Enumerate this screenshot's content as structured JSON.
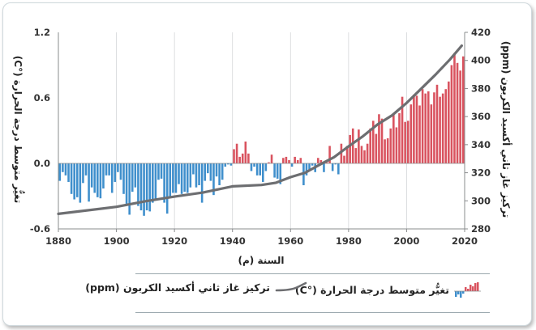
{
  "chart_data": {
    "type": "bar+line",
    "x_start": 1880,
    "x_end": 2019,
    "xlim": [
      1880,
      2020
    ],
    "xticks": [
      1880,
      1900,
      1920,
      1940,
      1960,
      1980,
      2000,
      2020
    ],
    "xlabel": "السنة (م)",
    "y_left": {
      "label": "تغيُّر متوسط درجة الحرارة (°C)",
      "lim": [
        -0.6,
        1.2
      ],
      "ticks": [
        "1.2",
        "0.6",
        "0.0",
        "-0.6"
      ],
      "tick_values": [
        1.2,
        0.6,
        0.0,
        -0.6
      ]
    },
    "y_right": {
      "label": "تركيز غاز ثاني أكسيد الكربون (ppm)",
      "lim": [
        280,
        420
      ],
      "ticks": [
        "420",
        "400",
        "380",
        "360",
        "340",
        "320",
        "300",
        "280"
      ],
      "tick_values": [
        420,
        400,
        380,
        360,
        340,
        320,
        300,
        280
      ]
    },
    "temperature_anomaly": [
      -0.16,
      -0.08,
      -0.11,
      -0.17,
      -0.28,
      -0.33,
      -0.31,
      -0.36,
      -0.18,
      -0.11,
      -0.35,
      -0.22,
      -0.27,
      -0.31,
      -0.32,
      -0.23,
      -0.11,
      -0.11,
      -0.27,
      -0.17,
      -0.08,
      -0.15,
      -0.28,
      -0.37,
      -0.47,
      -0.26,
      -0.22,
      -0.39,
      -0.43,
      -0.48,
      -0.43,
      -0.44,
      -0.36,
      -0.34,
      -0.15,
      -0.14,
      -0.36,
      -0.46,
      -0.3,
      -0.27,
      -0.27,
      -0.19,
      -0.28,
      -0.26,
      -0.27,
      -0.22,
      -0.1,
      -0.22,
      -0.2,
      -0.36,
      -0.16,
      -0.09,
      -0.16,
      -0.29,
      -0.12,
      -0.2,
      -0.15,
      -0.03,
      -0.01,
      -0.02,
      0.13,
      0.18,
      0.06,
      0.09,
      0.2,
      0.09,
      -0.07,
      -0.03,
      -0.11,
      -0.11,
      -0.17,
      -0.07,
      0.01,
      0.08,
      -0.13,
      -0.14,
      -0.19,
      0.05,
      0.06,
      0.03,
      -0.03,
      0.06,
      0.03,
      0.05,
      -0.2,
      -0.11,
      -0.06,
      -0.02,
      -0.08,
      0.05,
      0.03,
      -0.08,
      0.01,
      0.16,
      -0.07,
      -0.01,
      -0.1,
      0.18,
      0.07,
      0.16,
      0.26,
      0.32,
      0.14,
      0.31,
      0.16,
      0.12,
      0.18,
      0.32,
      0.39,
      0.27,
      0.45,
      0.41,
      0.22,
      0.23,
      0.32,
      0.45,
      0.33,
      0.46,
      0.61,
      0.38,
      0.39,
      0.54,
      0.63,
      0.62,
      0.53,
      0.68,
      0.64,
      0.66,
      0.54,
      0.65,
      0.72,
      0.61,
      0.64,
      0.68,
      0.75,
      0.9,
      1.01,
      0.92,
      0.85,
      0.98
    ],
    "co2_ppm_points": [
      {
        "year": 1880,
        "ppm": 290.7
      },
      {
        "year": 1900,
        "ppm": 295.7
      },
      {
        "year": 1910,
        "ppm": 299.7
      },
      {
        "year": 1920,
        "ppm": 303.0
      },
      {
        "year": 1930,
        "ppm": 306.0
      },
      {
        "year": 1940,
        "ppm": 310.3
      },
      {
        "year": 1950,
        "ppm": 311.3
      },
      {
        "year": 1955,
        "ppm": 312.9
      },
      {
        "year": 1960,
        "ppm": 316.9
      },
      {
        "year": 1965,
        "ppm": 320.0
      },
      {
        "year": 1970,
        "ppm": 325.7
      },
      {
        "year": 1975,
        "ppm": 331.1
      },
      {
        "year": 1980,
        "ppm": 338.8
      },
      {
        "year": 1985,
        "ppm": 346.1
      },
      {
        "year": 1990,
        "ppm": 354.4
      },
      {
        "year": 1995,
        "ppm": 360.9
      },
      {
        "year": 2000,
        "ppm": 369.7
      },
      {
        "year": 2005,
        "ppm": 379.8
      },
      {
        "year": 2010,
        "ppm": 389.9
      },
      {
        "year": 2015,
        "ppm": 400.8
      },
      {
        "year": 2019,
        "ppm": 410.5
      }
    ],
    "grid": "vertical",
    "colors": {
      "positive_bar": "#d9535f",
      "negative_bar": "#3f8fcc",
      "co2_line": "#6d6e71",
      "axis": "#8a8c8e",
      "grid": "#d4d6d8"
    }
  },
  "legend": {
    "temperature_label": "تغيُّر متوسط درجة الحرارة (°C)",
    "co2_label": "تركيز غاز ثاني أكسيد الكربون (ppm)"
  }
}
